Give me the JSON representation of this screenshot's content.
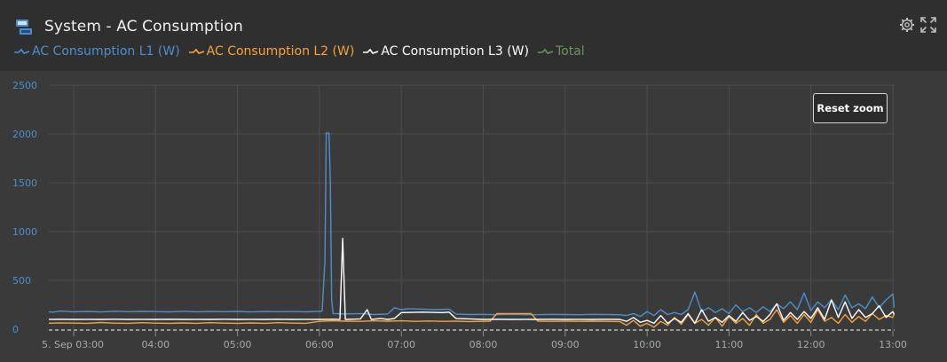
{
  "header": {
    "title": "System - AC Consumption",
    "icons": {
      "app": "system-battery-icon",
      "settings": "gear-icon",
      "fullscreen": "expand-icon"
    }
  },
  "colors": {
    "l1": "#4d8fcc",
    "l2": "#f6a33a",
    "l3": "#ffffff",
    "total": "#6f8f5a",
    "grid": "#4e4e4e",
    "tick": "#4d8fcc",
    "xtick": "#a9a9a9"
  },
  "toolbar": {
    "reset_zoom_label": "Reset zoom"
  },
  "chart_data": {
    "type": "line",
    "title": "System - AC Consumption",
    "ylabel": "",
    "ylim": [
      0,
      2500
    ],
    "yticks": [
      0,
      500,
      1000,
      1500,
      2000,
      2500
    ],
    "xrange": [
      "03:00",
      "13:00"
    ],
    "xticks": [
      {
        "t": "03:00",
        "label": "5. Sep 03:00"
      },
      {
        "t": "04:00",
        "label": "04:00"
      },
      {
        "t": "05:00",
        "label": "05:00"
      },
      {
        "t": "06:00",
        "label": "06:00"
      },
      {
        "t": "07:00",
        "label": "07:00"
      },
      {
        "t": "08:00",
        "label": "08:00"
      },
      {
        "t": "09:00",
        "label": "09:00"
      },
      {
        "t": "10:00",
        "label": "10:00"
      },
      {
        "t": "11:00",
        "label": "11:00"
      },
      {
        "t": "12:00",
        "label": "12:00"
      },
      {
        "t": "13:00",
        "label": "13:00"
      }
    ],
    "grid": true,
    "legend_position": "top-left",
    "series": [
      {
        "name": "AC Consumption L1 (W)",
        "color": "#4d8fcc",
        "points": [
          [
            "02:40",
            180
          ],
          [
            "02:45",
            175
          ],
          [
            "02:50",
            185
          ],
          [
            "03:00",
            178
          ],
          [
            "03:10",
            182
          ],
          [
            "03:20",
            176
          ],
          [
            "03:30",
            184
          ],
          [
            "03:40",
            179
          ],
          [
            "03:50",
            182
          ],
          [
            "04:00",
            180
          ],
          [
            "04:10",
            177
          ],
          [
            "04:20",
            183
          ],
          [
            "04:30",
            178
          ],
          [
            "04:40",
            181
          ],
          [
            "04:50",
            179
          ],
          [
            "05:00",
            182
          ],
          [
            "05:10",
            176
          ],
          [
            "05:20",
            181
          ],
          [
            "05:30",
            179
          ],
          [
            "05:40",
            180
          ],
          [
            "05:50",
            178
          ],
          [
            "06:00",
            182
          ],
          [
            "06:02",
            185
          ],
          [
            "06:04",
            700
          ],
          [
            "06:05",
            2010
          ],
          [
            "06:07",
            2010
          ],
          [
            "06:08",
            1500
          ],
          [
            "06:09",
            300
          ],
          [
            "06:10",
            160
          ],
          [
            "06:20",
            155
          ],
          [
            "06:30",
            160
          ],
          [
            "06:40",
            150
          ],
          [
            "06:50",
            155
          ],
          [
            "06:55",
            220
          ],
          [
            "07:00",
            200
          ],
          [
            "07:05",
            210
          ],
          [
            "07:15",
            205
          ],
          [
            "07:25",
            200
          ],
          [
            "07:35",
            205
          ],
          [
            "07:40",
            155
          ],
          [
            "07:50",
            150
          ],
          [
            "08:00",
            152
          ],
          [
            "08:10",
            148
          ],
          [
            "08:20",
            152
          ],
          [
            "08:30",
            150
          ],
          [
            "08:40",
            148
          ],
          [
            "08:50",
            152
          ],
          [
            "09:00",
            150
          ],
          [
            "09:10",
            148
          ],
          [
            "09:20",
            152
          ],
          [
            "09:30",
            150
          ],
          [
            "09:40",
            148
          ],
          [
            "09:45",
            140
          ],
          [
            "09:50",
            160
          ],
          [
            "09:55",
            130
          ],
          [
            "10:00",
            180
          ],
          [
            "10:05",
            140
          ],
          [
            "10:10",
            200
          ],
          [
            "10:15",
            150
          ],
          [
            "10:20",
            170
          ],
          [
            "10:25",
            150
          ],
          [
            "10:30",
            200
          ],
          [
            "10:35",
            380
          ],
          [
            "10:40",
            180
          ],
          [
            "10:45",
            220
          ],
          [
            "10:50",
            170
          ],
          [
            "10:55",
            210
          ],
          [
            "11:00",
            160
          ],
          [
            "11:05",
            250
          ],
          [
            "11:10",
            180
          ],
          [
            "11:15",
            220
          ],
          [
            "11:20",
            170
          ],
          [
            "11:25",
            230
          ],
          [
            "11:30",
            180
          ],
          [
            "11:35",
            260
          ],
          [
            "11:40",
            210
          ],
          [
            "11:45",
            280
          ],
          [
            "11:50",
            200
          ],
          [
            "11:55",
            370
          ],
          [
            "12:00",
            190
          ],
          [
            "12:05",
            280
          ],
          [
            "12:10",
            220
          ],
          [
            "12:15",
            300
          ],
          [
            "12:20",
            200
          ],
          [
            "12:25",
            350
          ],
          [
            "12:30",
            220
          ],
          [
            "12:35",
            260
          ],
          [
            "12:40",
            210
          ],
          [
            "12:45",
            330
          ],
          [
            "12:50",
            220
          ],
          [
            "12:55",
            300
          ],
          [
            "13:00",
            360
          ],
          [
            "13:01",
            220
          ]
        ]
      },
      {
        "name": "AC Consumption L2 (W)",
        "color": "#f6a33a",
        "points": [
          [
            "02:40",
            60
          ],
          [
            "02:50",
            65
          ],
          [
            "03:00",
            62
          ],
          [
            "03:10",
            60
          ],
          [
            "03:20",
            68
          ],
          [
            "03:30",
            62
          ],
          [
            "03:40",
            60
          ],
          [
            "03:50",
            66
          ],
          [
            "04:00",
            62
          ],
          [
            "04:10",
            60
          ],
          [
            "04:20",
            64
          ],
          [
            "04:30",
            60
          ],
          [
            "04:40",
            66
          ],
          [
            "04:50",
            62
          ],
          [
            "05:00",
            60
          ],
          [
            "05:10",
            64
          ],
          [
            "05:20",
            60
          ],
          [
            "05:30",
            66
          ],
          [
            "05:40",
            62
          ],
          [
            "05:50",
            60
          ],
          [
            "06:00",
            80
          ],
          [
            "06:10",
            85
          ],
          [
            "06:20",
            82
          ],
          [
            "06:30",
            80
          ],
          [
            "06:40",
            85
          ],
          [
            "06:50",
            82
          ],
          [
            "07:00",
            85
          ],
          [
            "07:10",
            80
          ],
          [
            "07:20",
            84
          ],
          [
            "07:30",
            80
          ],
          [
            "07:40",
            82
          ],
          [
            "07:50",
            78
          ],
          [
            "08:00",
            80
          ],
          [
            "08:05",
            82
          ],
          [
            "08:10",
            160
          ],
          [
            "08:20",
            160
          ],
          [
            "08:30",
            160
          ],
          [
            "08:35",
            160
          ],
          [
            "08:40",
            82
          ],
          [
            "08:50",
            80
          ],
          [
            "09:00",
            82
          ],
          [
            "09:10",
            80
          ],
          [
            "09:20",
            82
          ],
          [
            "09:30",
            80
          ],
          [
            "09:40",
            78
          ],
          [
            "09:45",
            40
          ],
          [
            "09:50",
            90
          ],
          [
            "09:55",
            30
          ],
          [
            "10:00",
            60
          ],
          [
            "10:05",
            20
          ],
          [
            "10:10",
            80
          ],
          [
            "10:15",
            40
          ],
          [
            "10:20",
            120
          ],
          [
            "10:25",
            50
          ],
          [
            "10:30",
            150
          ],
          [
            "10:35",
            60
          ],
          [
            "10:40",
            100
          ],
          [
            "10:45",
            40
          ],
          [
            "10:50",
            120
          ],
          [
            "10:55",
            30
          ],
          [
            "11:00",
            130
          ],
          [
            "11:05",
            60
          ],
          [
            "11:10",
            110
          ],
          [
            "11:15",
            40
          ],
          [
            "11:20",
            150
          ],
          [
            "11:25",
            60
          ],
          [
            "11:30",
            100
          ],
          [
            "11:35",
            200
          ],
          [
            "11:40",
            70
          ],
          [
            "11:45",
            140
          ],
          [
            "11:50",
            60
          ],
          [
            "11:55",
            150
          ],
          [
            "12:00",
            70
          ],
          [
            "12:05",
            200
          ],
          [
            "12:10",
            80
          ],
          [
            "12:15",
            120
          ],
          [
            "12:20",
            60
          ],
          [
            "12:25",
            150
          ],
          [
            "12:30",
            70
          ],
          [
            "12:35",
            130
          ],
          [
            "12:40",
            80
          ],
          [
            "12:45",
            160
          ],
          [
            "12:50",
            100
          ],
          [
            "12:55",
            140
          ],
          [
            "13:00",
            120
          ],
          [
            "13:01",
            160
          ]
        ]
      },
      {
        "name": "AC Consumption L3 (W)",
        "color": "#ffffff",
        "points": [
          [
            "02:40",
            100
          ],
          [
            "02:50",
            102
          ],
          [
            "03:00",
            100
          ],
          [
            "03:10",
            101
          ],
          [
            "03:20",
            100
          ],
          [
            "03:30",
            102
          ],
          [
            "03:40",
            100
          ],
          [
            "03:50",
            101
          ],
          [
            "04:00",
            100
          ],
          [
            "04:10",
            102
          ],
          [
            "04:20",
            100
          ],
          [
            "04:30",
            101
          ],
          [
            "04:40",
            100
          ],
          [
            "04:50",
            102
          ],
          [
            "05:00",
            100
          ],
          [
            "05:10",
            101
          ],
          [
            "05:20",
            100
          ],
          [
            "05:30",
            102
          ],
          [
            "05:40",
            100
          ],
          [
            "05:50",
            101
          ],
          [
            "06:00",
            100
          ],
          [
            "06:10",
            102
          ],
          [
            "06:15",
            100
          ],
          [
            "06:17",
            930
          ],
          [
            "06:19",
            100
          ],
          [
            "06:30",
            105
          ],
          [
            "06:35",
            200
          ],
          [
            "06:38",
            100
          ],
          [
            "06:45",
            110
          ],
          [
            "06:50",
            100
          ],
          [
            "06:55",
            110
          ],
          [
            "07:00",
            170
          ],
          [
            "07:15",
            175
          ],
          [
            "07:30",
            170
          ],
          [
            "07:35",
            175
          ],
          [
            "07:40",
            110
          ],
          [
            "07:50",
            105
          ],
          [
            "08:00",
            100
          ],
          [
            "08:10",
            102
          ],
          [
            "08:20",
            100
          ],
          [
            "08:30",
            101
          ],
          [
            "08:40",
            100
          ],
          [
            "08:50",
            102
          ],
          [
            "09:00",
            100
          ],
          [
            "09:10",
            101
          ],
          [
            "09:20",
            100
          ],
          [
            "09:30",
            102
          ],
          [
            "09:40",
            100
          ],
          [
            "09:45",
            80
          ],
          [
            "09:50",
            120
          ],
          [
            "09:55",
            70
          ],
          [
            "10:00",
            90
          ],
          [
            "10:05",
            60
          ],
          [
            "10:10",
            140
          ],
          [
            "10:15",
            60
          ],
          [
            "10:20",
            110
          ],
          [
            "10:25",
            70
          ],
          [
            "10:30",
            160
          ],
          [
            "10:35",
            60
          ],
          [
            "10:40",
            200
          ],
          [
            "10:45",
            80
          ],
          [
            "10:50",
            120
          ],
          [
            "10:55",
            70
          ],
          [
            "11:00",
            140
          ],
          [
            "11:05",
            80
          ],
          [
            "11:10",
            170
          ],
          [
            "11:15",
            90
          ],
          [
            "11:20",
            130
          ],
          [
            "11:25",
            80
          ],
          [
            "11:30",
            150
          ],
          [
            "11:35",
            260
          ],
          [
            "11:40",
            90
          ],
          [
            "11:45",
            170
          ],
          [
            "11:50",
            100
          ],
          [
            "11:55",
            180
          ],
          [
            "12:00",
            110
          ],
          [
            "12:05",
            220
          ],
          [
            "12:10",
            100
          ],
          [
            "12:15",
            300
          ],
          [
            "12:20",
            120
          ],
          [
            "12:25",
            280
          ],
          [
            "12:30",
            110
          ],
          [
            "12:35",
            200
          ],
          [
            "12:40",
            120
          ],
          [
            "12:45",
            160
          ],
          [
            "12:50",
            240
          ],
          [
            "12:55",
            120
          ],
          [
            "13:00",
            180
          ],
          [
            "13:01",
            150
          ]
        ]
      },
      {
        "name": "Total",
        "color": "#6f8f5a",
        "points": []
      }
    ]
  }
}
